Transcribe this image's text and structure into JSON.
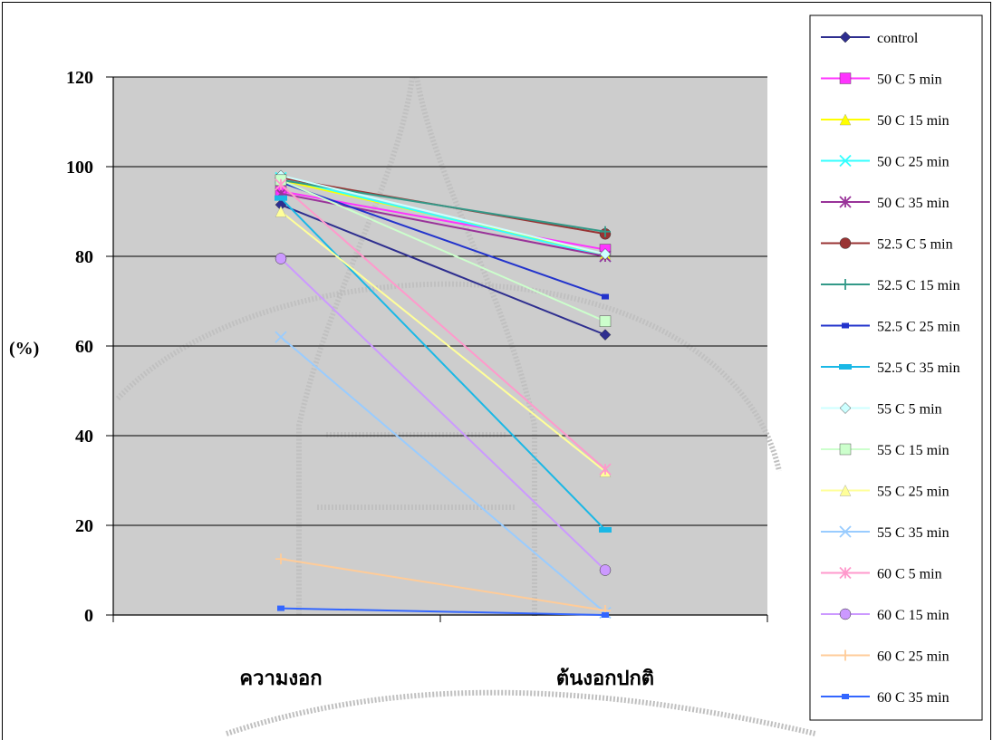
{
  "chart_data": {
    "type": "line",
    "title": "",
    "xlabel": "",
    "ylabel": "(%)",
    "ylim": [
      0,
      120
    ],
    "yticks": [
      "0",
      "20",
      "40",
      "60",
      "80",
      "100",
      "120"
    ],
    "categories": [
      "ความงอก",
      "ต้นงอกปกติ"
    ],
    "grid": true,
    "legend_position": "right",
    "plot_background": "#c0c0c0",
    "series": [
      {
        "name": "control",
        "values": [
          91.5,
          62.5
        ],
        "color": "#2e2e8f",
        "marker": "diamond"
      },
      {
        "name": "50 C 5 min",
        "values": [
          94.5,
          81.5
        ],
        "color": "#ff33ff",
        "marker": "square"
      },
      {
        "name": "50 C 15 min",
        "values": [
          97,
          80.5
        ],
        "color": "#ffff00",
        "marker": "triangle"
      },
      {
        "name": "50 C 25 min",
        "values": [
          97.5,
          80
        ],
        "color": "#33ffff",
        "marker": "x"
      },
      {
        "name": "50 C 35 min",
        "values": [
          94,
          80
        ],
        "color": "#993399",
        "marker": "asterisk"
      },
      {
        "name": "52.5 C 5 min",
        "values": [
          97.5,
          85
        ],
        "color": "#993333",
        "marker": "circle"
      },
      {
        "name": "52.5 C 15 min",
        "values": [
          97,
          85.5
        ],
        "color": "#339988",
        "marker": "plus"
      },
      {
        "name": "52.5 C 25 min",
        "values": [
          96.5,
          71
        ],
        "color": "#2233cc",
        "marker": "smallsquare"
      },
      {
        "name": "52.5 C 35 min",
        "values": [
          93,
          19
        ],
        "color": "#1ab8e6",
        "marker": "bar"
      },
      {
        "name": "55 C 5 min",
        "values": [
          98,
          80.5
        ],
        "color": "#ccffff",
        "marker": "diamond"
      },
      {
        "name": "55 C 15 min",
        "values": [
          97,
          65.5
        ],
        "color": "#ccffcc",
        "marker": "square"
      },
      {
        "name": "55 C 25 min",
        "values": [
          90,
          32
        ],
        "color": "#ffff99",
        "marker": "triangle"
      },
      {
        "name": "55 C 35 min",
        "values": [
          62,
          0.5
        ],
        "color": "#99ccff",
        "marker": "x"
      },
      {
        "name": "60 C 5 min",
        "values": [
          96,
          32.5
        ],
        "color": "#ff99cc",
        "marker": "asterisk"
      },
      {
        "name": "60 C 15 min",
        "values": [
          79.5,
          10
        ],
        "color": "#cc99ff",
        "marker": "circle"
      },
      {
        "name": "60 C 25 min",
        "values": [
          12.5,
          1
        ],
        "color": "#ffcc99",
        "marker": "plus"
      },
      {
        "name": "60 C 35 min",
        "values": [
          1.5,
          0
        ],
        "color": "#3366ff",
        "marker": "smallsquare"
      }
    ]
  }
}
